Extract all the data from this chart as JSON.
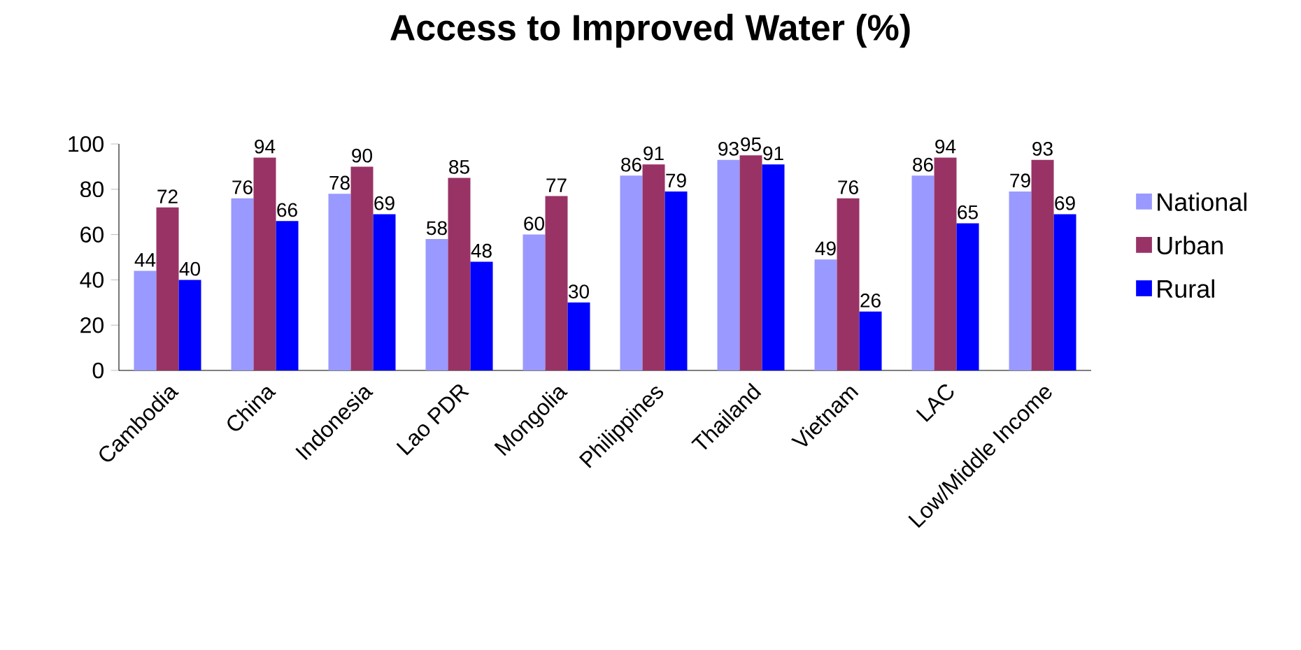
{
  "chart_data": {
    "type": "bar",
    "title": "Access to Improved Water (%)",
    "categories": [
      "Cambodia",
      "China",
      "Indonesia",
      "Lao PDR",
      "Mongolia",
      "Philippines",
      "Thailand",
      "Vietnam",
      "LAC",
      "Low/Middle Income"
    ],
    "series": [
      {
        "name": "National",
        "color": "#9999ff",
        "values": [
          44,
          76,
          78,
          58,
          60,
          86,
          93,
          49,
          86,
          79
        ]
      },
      {
        "name": "Urban",
        "color": "#993366",
        "values": [
          72,
          94,
          90,
          85,
          77,
          91,
          95,
          76,
          94,
          93
        ]
      },
      {
        "name": "Rural",
        "color": "#0000ff",
        "values": [
          40,
          66,
          69,
          48,
          30,
          79,
          91,
          26,
          65,
          69
        ]
      }
    ],
    "ylim": [
      0,
      100
    ],
    "yticks": [
      0,
      20,
      40,
      60,
      80,
      100
    ],
    "grid": false,
    "legend": "right",
    "data_labels": true
  }
}
